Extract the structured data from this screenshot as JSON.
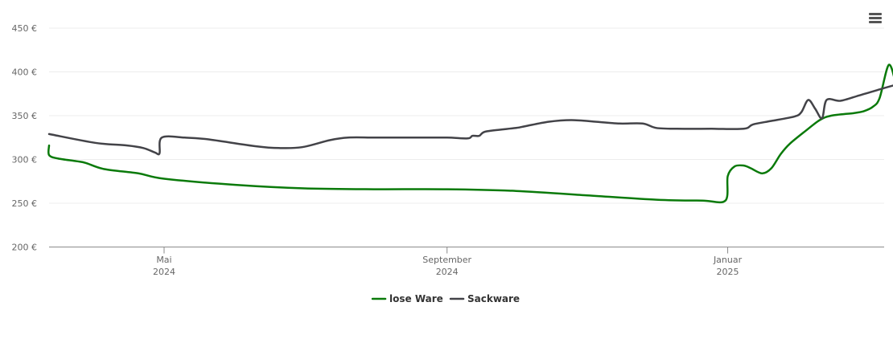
{
  "menu": {
    "icon": "hamburger-menu-icon"
  },
  "chart_data": {
    "type": "line",
    "title": "",
    "xlabel": "",
    "ylabel": "",
    "ylim": [
      200,
      450
    ],
    "y_ticks": [
      200,
      250,
      300,
      350,
      400,
      450
    ],
    "y_tick_labels": [
      "200 €",
      "250 €",
      "300 €",
      "350 €",
      "400 €",
      "450 €"
    ],
    "x_range": [
      "2024-03-12",
      "2025-03-10"
    ],
    "x_ticks": [
      {
        "date": "2024-05-01",
        "month": "Mai",
        "year": "2024"
      },
      {
        "date": "2024-09-01",
        "month": "September",
        "year": "2024"
      },
      {
        "date": "2025-01-01",
        "month": "Januar",
        "year": "2025"
      }
    ],
    "grid": true,
    "legend_position": "bottom-center",
    "series": [
      {
        "name": "lose Ware",
        "color": "#0a7a0a",
        "points": [
          [
            "2024-03-12",
            316
          ],
          [
            "2024-03-12",
            305
          ],
          [
            "2024-03-16",
            301
          ],
          [
            "2024-03-24",
            298
          ],
          [
            "2024-03-28",
            296
          ],
          [
            "2024-04-05",
            289
          ],
          [
            "2024-04-20",
            284
          ],
          [
            "2024-05-01",
            278
          ],
          [
            "2024-06-01",
            271
          ],
          [
            "2024-07-01",
            267
          ],
          [
            "2024-08-01",
            266
          ],
          [
            "2024-09-01",
            266
          ],
          [
            "2024-10-01",
            264
          ],
          [
            "2024-11-01",
            259
          ],
          [
            "2024-12-01",
            254
          ],
          [
            "2024-12-21",
            253
          ],
          [
            "2024-12-31",
            253
          ],
          [
            "2025-01-01",
            281
          ],
          [
            "2025-01-04",
            292
          ],
          [
            "2025-01-08",
            293
          ],
          [
            "2025-01-11",
            290
          ],
          [
            "2025-01-16",
            284
          ],
          [
            "2025-01-20",
            290
          ],
          [
            "2025-01-24",
            306
          ],
          [
            "2025-01-28",
            318
          ],
          [
            "2025-02-05",
            335
          ],
          [
            "2025-02-10",
            345
          ],
          [
            "2025-02-15",
            350
          ],
          [
            "2025-02-25",
            353
          ],
          [
            "2025-03-01",
            355
          ],
          [
            "2025-03-05",
            360
          ],
          [
            "2025-03-08",
            370
          ],
          [
            "2025-03-12",
            408
          ],
          [
            "2025-03-15",
            387
          ],
          [
            "2025-03-16",
            375
          ]
        ]
      },
      {
        "name": "Sackware",
        "color": "#434348",
        "points": [
          [
            "2024-03-12",
            329
          ],
          [
            "2024-04-01",
            319
          ],
          [
            "2024-04-15",
            316
          ],
          [
            "2024-04-22",
            313
          ],
          [
            "2024-04-27",
            308
          ],
          [
            "2024-04-29",
            307
          ],
          [
            "2024-04-30",
            325
          ],
          [
            "2024-05-10",
            325
          ],
          [
            "2024-05-20",
            323
          ],
          [
            "2024-06-10",
            315
          ],
          [
            "2024-06-20",
            313
          ],
          [
            "2024-06-30",
            314
          ],
          [
            "2024-07-12",
            322
          ],
          [
            "2024-07-20",
            325
          ],
          [
            "2024-08-01",
            325
          ],
          [
            "2024-08-20",
            325
          ],
          [
            "2024-09-01",
            325
          ],
          [
            "2024-09-10",
            324
          ],
          [
            "2024-09-12",
            327
          ],
          [
            "2024-09-15",
            327
          ],
          [
            "2024-09-18",
            332
          ],
          [
            "2024-10-01",
            336
          ],
          [
            "2024-10-05",
            338
          ],
          [
            "2024-10-15",
            343
          ],
          [
            "2024-10-25",
            345
          ],
          [
            "2024-11-05",
            343
          ],
          [
            "2024-11-15",
            341
          ],
          [
            "2024-11-25",
            341
          ],
          [
            "2024-12-01",
            336
          ],
          [
            "2024-12-10",
            335
          ],
          [
            "2024-12-25",
            335
          ],
          [
            "2025-01-08",
            335
          ],
          [
            "2025-01-12",
            340
          ],
          [
            "2025-01-20",
            344
          ],
          [
            "2025-01-30",
            349
          ],
          [
            "2025-02-02",
            354
          ],
          [
            "2025-02-05",
            368
          ],
          [
            "2025-02-08",
            358
          ],
          [
            "2025-02-11",
            347
          ],
          [
            "2025-02-13",
            368
          ],
          [
            "2025-02-19",
            367
          ],
          [
            "2025-02-27",
            373
          ],
          [
            "2025-03-08",
            380
          ],
          [
            "2025-03-16",
            386
          ]
        ]
      }
    ]
  }
}
